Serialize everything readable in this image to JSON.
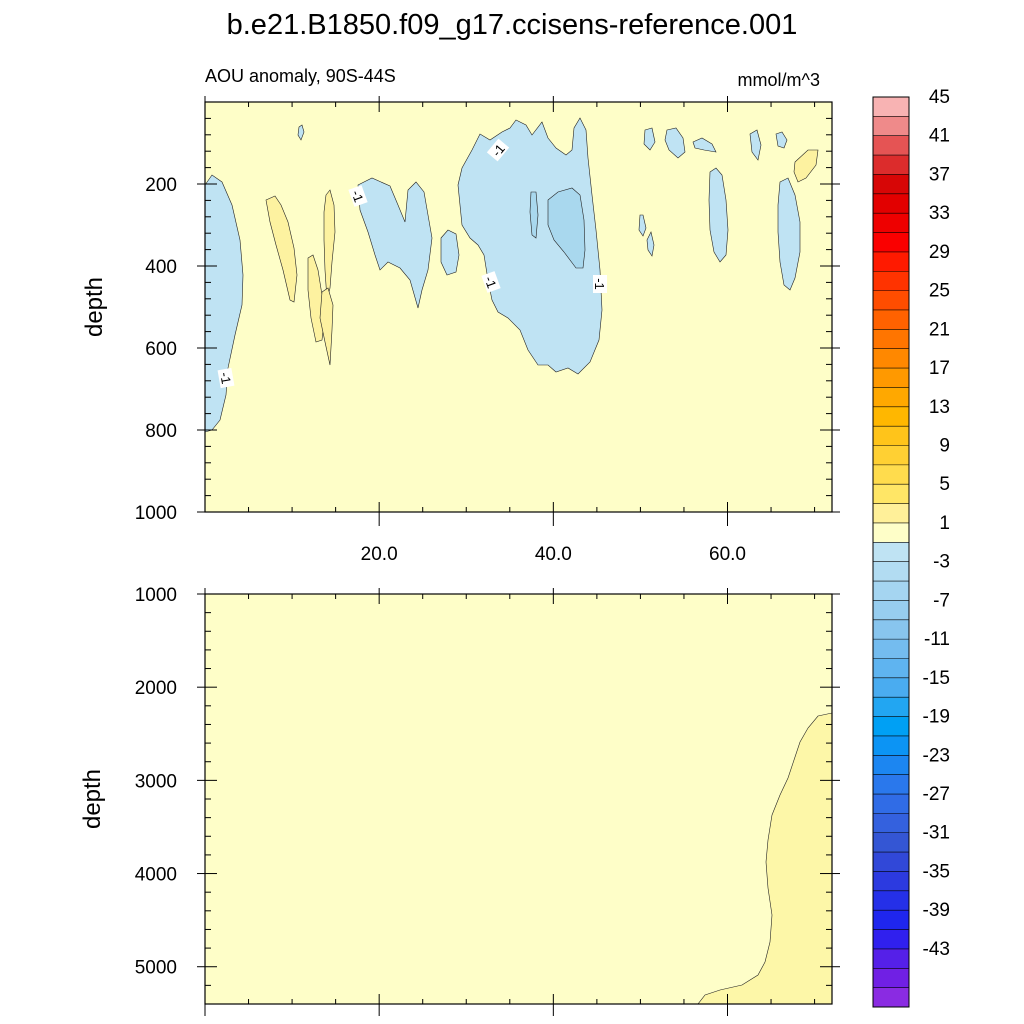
{
  "chart_data": {
    "type": "contour",
    "title": "b.e21.B1850.f09_g17.ccisens-reference.001",
    "left_subtitle": "AOU anomaly, 90S-44S",
    "right_subtitle": "mmol/m^3",
    "x_tick_labels": [
      "20.0",
      "40.0",
      "60.0"
    ],
    "x_ticks": [
      20,
      40,
      60
    ],
    "xlim": [
      0,
      72
    ],
    "background_level_color": "#fefec8",
    "contour_label": "-1",
    "panels": [
      {
        "name": "upper-ocean",
        "ylabel": "depth",
        "ylim": [
          1000,
          0
        ],
        "y_ticks": [
          200,
          400,
          600,
          800,
          1000
        ],
        "y_tick_labels": [
          "200",
          "400",
          "600",
          "800",
          "1000"
        ]
      },
      {
        "name": "deep-ocean",
        "ylabel": "depth",
        "ylim": [
          5400,
          1000
        ],
        "y_ticks": [
          1000,
          2000,
          3000,
          4000,
          5000
        ],
        "y_tick_labels": [
          "1000",
          "2000",
          "3000",
          "4000",
          "5000"
        ]
      }
    ],
    "colorbar": {
      "levels": [
        45,
        43,
        41,
        39,
        37,
        35,
        33,
        31,
        29,
        27,
        25,
        23,
        21,
        19,
        17,
        15,
        13,
        11,
        9,
        7,
        5,
        3,
        1,
        -1,
        -3,
        -5,
        -7,
        -9,
        -11,
        -13,
        -15,
        -17,
        -19,
        -21,
        -23,
        -25,
        -27,
        -29,
        -31,
        -33,
        -35,
        -37,
        -39,
        -41,
        -43,
        -45
      ],
      "labels": [
        "45",
        "41",
        "37",
        "33",
        "29",
        "25",
        "21",
        "17",
        "13",
        "9",
        "5",
        "1",
        "-3",
        "-7",
        "-11",
        "-15",
        "-19",
        "-23",
        "-27",
        "-31",
        "-35",
        "-39",
        "-43"
      ],
      "colors": [
        "#f8b3b3",
        "#ef8a8a",
        "#e55454",
        "#dc2c2c",
        "#d70606",
        "#e20000",
        "#ee0000",
        "#fa0000",
        "#ff1a00",
        "#ff3300",
        "#ff4d00",
        "#ff6200",
        "#ff7500",
        "#ff8800",
        "#ff9900",
        "#ffa800",
        "#ffb700",
        "#ffc41a",
        "#ffd033",
        "#ffdc4d",
        "#ffe666",
        "#fff099",
        "#fefec8",
        "#bfe3f3",
        "#b2dcf2",
        "#a5d5f1",
        "#97cdef",
        "#88c5ee",
        "#74bcef",
        "#5fb4f0",
        "#4aacf0",
        "#22a6f2",
        "#00a0f4",
        "#0c94f4",
        "#1c86f1",
        "#2a78ec",
        "#306ce6",
        "#3461de",
        "#3456d4",
        "#3148d8",
        "#2c3ae0",
        "#2530e8",
        "#1f26ee",
        "#3020ee",
        "#5520e8",
        "#7020e4",
        "#8a2be2"
      ]
    }
  }
}
